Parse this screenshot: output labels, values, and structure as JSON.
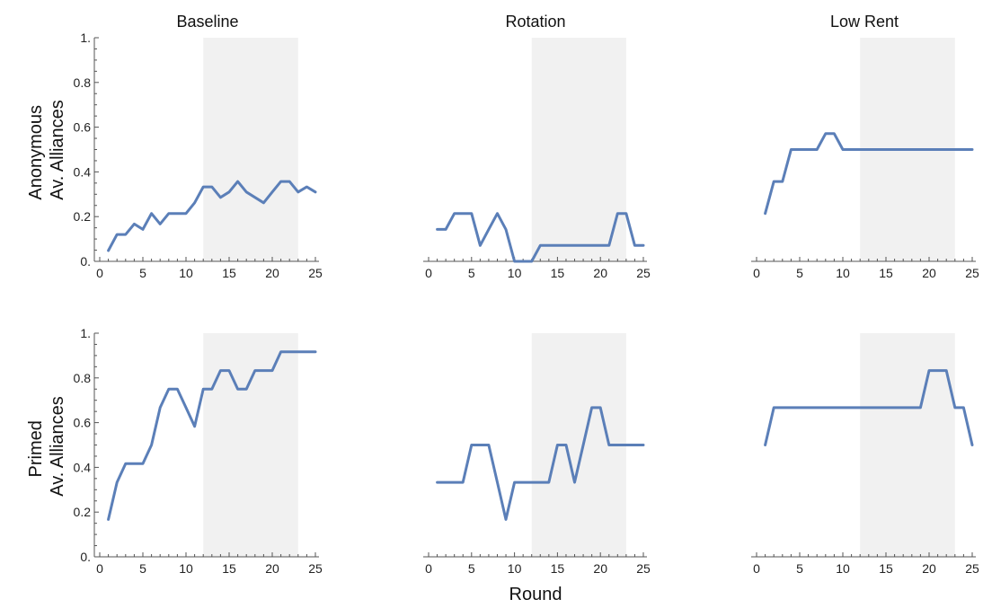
{
  "figure": {
    "column_titles": [
      "Baseline",
      "Rotation",
      "Low Rent"
    ],
    "row_labels": [
      [
        "Anonymous",
        "Av. Alliances"
      ],
      [
        "Primed",
        "Av. Alliances"
      ]
    ],
    "xlabel": "Round"
  },
  "chart_data": [
    {
      "type": "line",
      "row": "Anonymous",
      "column": "Baseline",
      "xlim": [
        0,
        25
      ],
      "ylim": [
        0,
        1
      ],
      "xticks": [
        0,
        5,
        10,
        15,
        20,
        25
      ],
      "yticks": [
        0,
        0.2,
        0.4,
        0.6,
        0.8,
        1
      ],
      "ytick_labels": [
        "0.",
        "0.2",
        "0.4",
        "0.6",
        "0.8",
        "1."
      ],
      "show_y_ticks": true,
      "shaded_x_range": [
        12,
        23
      ],
      "line_color": "#5b7fb8",
      "x": [
        1,
        2,
        3,
        4,
        5,
        6,
        7,
        8,
        9,
        10,
        11,
        12,
        13,
        14,
        15,
        16,
        17,
        18,
        19,
        20,
        21,
        22,
        23,
        24,
        25
      ],
      "values": [
        0.048,
        0.12,
        0.12,
        0.167,
        0.143,
        0.214,
        0.167,
        0.214,
        0.214,
        0.214,
        0.262,
        0.333,
        0.333,
        0.286,
        0.31,
        0.357,
        0.31,
        0.286,
        0.262,
        0.31,
        0.357,
        0.357,
        0.31,
        0.333,
        0.31
      ]
    },
    {
      "type": "line",
      "row": "Anonymous",
      "column": "Rotation",
      "xlim": [
        0,
        25
      ],
      "ylim": [
        0,
        1
      ],
      "xticks": [
        0,
        5,
        10,
        15,
        20,
        25
      ],
      "yticks": [],
      "ytick_labels": [],
      "show_y_ticks": false,
      "shaded_x_range": [
        12,
        23
      ],
      "line_color": "#5b7fb8",
      "x": [
        1,
        2,
        3,
        4,
        5,
        6,
        7,
        8,
        9,
        10,
        11,
        12,
        13,
        14,
        15,
        16,
        17,
        18,
        19,
        20,
        21,
        22,
        23,
        24,
        25
      ],
      "values": [
        0.143,
        0.143,
        0.214,
        0.214,
        0.214,
        0.071,
        0.143,
        0.214,
        0.143,
        0,
        0,
        0,
        0.071,
        0.071,
        0.071,
        0.071,
        0.071,
        0.071,
        0.071,
        0.071,
        0.071,
        0.214,
        0.214,
        0.071,
        0.071
      ]
    },
    {
      "type": "line",
      "row": "Anonymous",
      "column": "Low Rent",
      "xlim": [
        0,
        25
      ],
      "ylim": [
        0,
        1
      ],
      "xticks": [
        0,
        5,
        10,
        15,
        20,
        25
      ],
      "yticks": [],
      "ytick_labels": [],
      "show_y_ticks": false,
      "shaded_x_range": [
        12,
        23
      ],
      "line_color": "#5b7fb8",
      "x": [
        1,
        2,
        3,
        4,
        5,
        6,
        7,
        8,
        9,
        10,
        11,
        12,
        13,
        14,
        15,
        16,
        17,
        18,
        19,
        20,
        21,
        22,
        23,
        24,
        25
      ],
      "values": [
        0.214,
        0.357,
        0.357,
        0.5,
        0.5,
        0.5,
        0.5,
        0.571,
        0.571,
        0.5,
        0.5,
        0.5,
        0.5,
        0.5,
        0.5,
        0.5,
        0.5,
        0.5,
        0.5,
        0.5,
        0.5,
        0.5,
        0.5,
        0.5,
        0.5
      ]
    },
    {
      "type": "line",
      "row": "Primed",
      "column": "Baseline",
      "xlim": [
        0,
        25
      ],
      "ylim": [
        0,
        1
      ],
      "xticks": [
        0,
        5,
        10,
        15,
        20,
        25
      ],
      "yticks": [
        0,
        0.2,
        0.4,
        0.6,
        0.8,
        1
      ],
      "ytick_labels": [
        "0.",
        "0.2",
        "0.4",
        "0.6",
        "0.8",
        "1."
      ],
      "show_y_ticks": true,
      "shaded_x_range": [
        12,
        23
      ],
      "line_color": "#5b7fb8",
      "x": [
        1,
        2,
        3,
        4,
        5,
        6,
        7,
        8,
        9,
        10,
        11,
        12,
        13,
        14,
        15,
        16,
        17,
        18,
        19,
        20,
        21,
        22,
        23,
        24,
        25
      ],
      "values": [
        0.167,
        0.333,
        0.417,
        0.417,
        0.417,
        0.5,
        0.667,
        0.75,
        0.75,
        0.667,
        0.583,
        0.75,
        0.75,
        0.833,
        0.833,
        0.75,
        0.75,
        0.833,
        0.833,
        0.833,
        0.917,
        0.917,
        0.917,
        0.917,
        0.917
      ]
    },
    {
      "type": "line",
      "row": "Primed",
      "column": "Rotation",
      "xlim": [
        0,
        25
      ],
      "ylim": [
        0,
        1
      ],
      "xticks": [
        0,
        5,
        10,
        15,
        20,
        25
      ],
      "yticks": [],
      "ytick_labels": [],
      "show_y_ticks": false,
      "shaded_x_range": [
        12,
        23
      ],
      "line_color": "#5b7fb8",
      "x": [
        1,
        2,
        3,
        4,
        5,
        6,
        7,
        8,
        9,
        10,
        11,
        12,
        13,
        14,
        15,
        16,
        17,
        18,
        19,
        20,
        21,
        22,
        23,
        24,
        25
      ],
      "values": [
        0.333,
        0.333,
        0.333,
        0.333,
        0.5,
        0.5,
        0.5,
        0.333,
        0.167,
        0.333,
        0.333,
        0.333,
        0.333,
        0.333,
        0.5,
        0.5,
        0.333,
        0.5,
        0.667,
        0.667,
        0.5,
        0.5,
        0.5,
        0.5,
        0.5
      ]
    },
    {
      "type": "line",
      "row": "Primed",
      "column": "Low Rent",
      "xlim": [
        0,
        25
      ],
      "ylim": [
        0,
        1
      ],
      "xticks": [
        0,
        5,
        10,
        15,
        20,
        25
      ],
      "yticks": [],
      "ytick_labels": [],
      "show_y_ticks": false,
      "shaded_x_range": [
        12,
        23
      ],
      "line_color": "#5b7fb8",
      "x": [
        1,
        2,
        3,
        4,
        5,
        6,
        7,
        8,
        9,
        10,
        11,
        12,
        13,
        14,
        15,
        16,
        17,
        18,
        19,
        20,
        21,
        22,
        23,
        24,
        25
      ],
      "values": [
        0.5,
        0.667,
        0.667,
        0.667,
        0.667,
        0.667,
        0.667,
        0.667,
        0.667,
        0.667,
        0.667,
        0.667,
        0.667,
        0.667,
        0.667,
        0.667,
        0.667,
        0.667,
        0.667,
        0.833,
        0.833,
        0.833,
        0.667,
        0.667,
        0.5
      ]
    }
  ]
}
